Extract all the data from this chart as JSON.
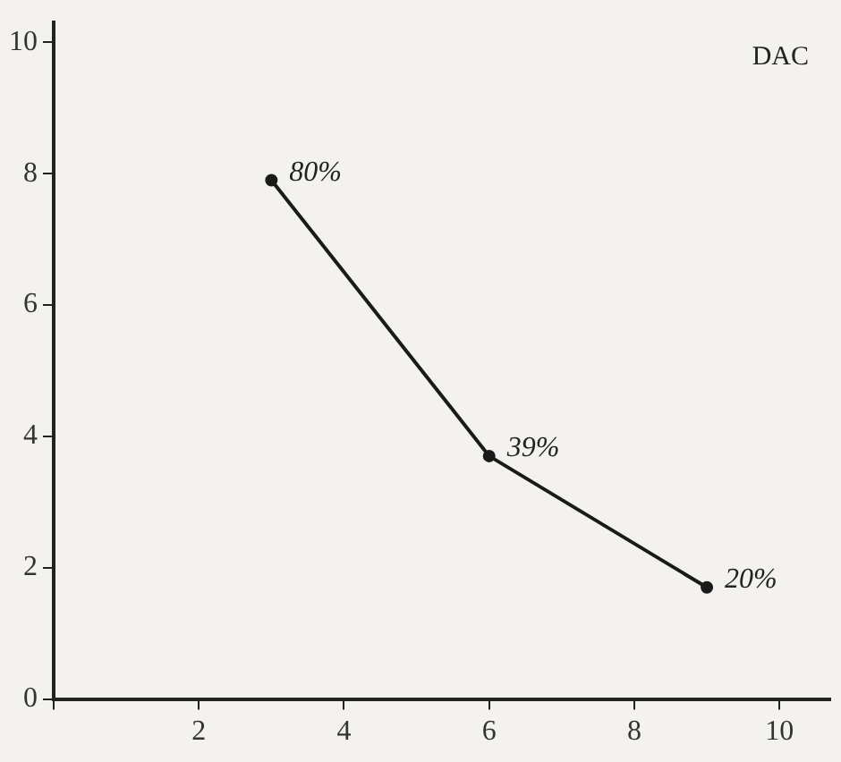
{
  "chart_data": {
    "type": "line",
    "x": [
      3,
      6,
      9
    ],
    "series": [
      {
        "color": "#1a1a1a",
        "values": [
          7.9,
          3.7,
          1.7
        ]
      }
    ],
    "xlim": [
      0,
      10.7
    ],
    "xticks": [
      {
        "value": 0,
        "label": null
      },
      2,
      4,
      6,
      8,
      10
    ],
    "ylim": [
      0,
      10.3
    ],
    "yticks": [
      0,
      2,
      4,
      6,
      8,
      10
    ],
    "grid": false,
    "legend": false,
    "marker": "circle",
    "line_style": "solid",
    "annotations": [
      "DAC",
      {
        "text": "80%",
        "x": 3,
        "y": 7.9
      },
      {
        "text": "39%",
        "x": 6,
        "y": 3.7
      },
      {
        "text": "20%",
        "x": 9,
        "y": 1.7
      }
    ]
  }
}
